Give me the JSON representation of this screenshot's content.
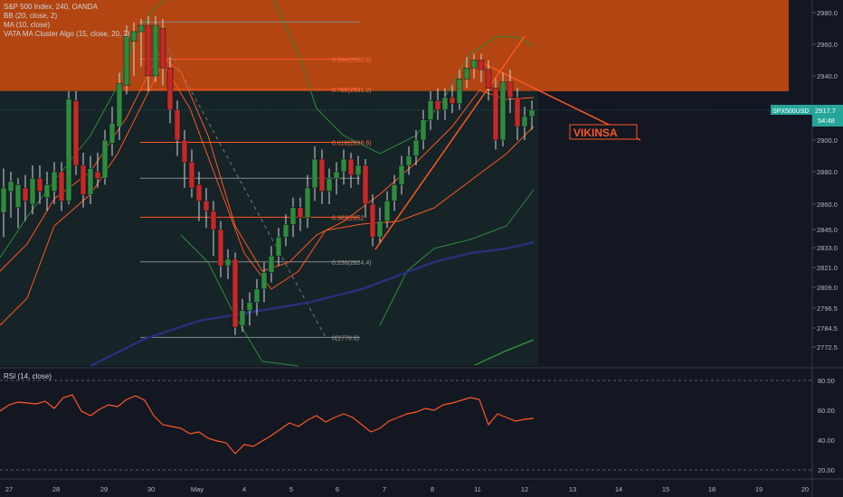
{
  "legend": {
    "title": "S&P 500 Index, 240, OANDA",
    "bb": "BB (20, close, 2)",
    "ma": "MA (10, close)",
    "vata": "VATA MA Cluster Algo (15, close, 20, 2)"
  },
  "rsi_label": "RSI (14, close)",
  "price_tag": {
    "symbol": "SPX500USD",
    "value": "2917.7",
    "countdown": "54:48",
    "color": "#26a69a"
  },
  "watermark": "VIKINSA",
  "colors": {
    "background": "#131722",
    "up": "#2e8b3e",
    "down": "#c62828",
    "zone": "#c44a10",
    "rsi": "#ff5722",
    "bb": "#2e8b3e",
    "ma": "#ff5722",
    "long_ma": "#2a2e7a"
  },
  "chart_data": {
    "type": "candlestick",
    "price_ticks": [
      2980.0,
      2960.0,
      2940.0,
      2917.7,
      2900.0,
      2880.0,
      2860.0,
      2845.0,
      2833.0,
      2821.0,
      2809.0,
      2796.5,
      2784.5,
      2772.5
    ],
    "price_tick_labels": [
      "2980.0",
      "2960.0",
      "2940.0",
      "2917.7",
      "2900.0",
      "2880.0",
      "2860.0",
      "2845.0",
      "2833.0",
      "2821.0",
      "2809.0",
      "2796.5",
      "2784.5",
      "2772.5"
    ],
    "x_ticks": [
      "27",
      "28",
      "29",
      "30",
      "May",
      "4",
      "5",
      "6",
      "7",
      "8",
      "11",
      "12",
      "13",
      "14",
      "15",
      "18",
      "19",
      "20"
    ],
    "fib_levels": [
      {
        "label": "",
        "value": 2974
      },
      {
        "label": "0.886(2950.6)",
        "value": 2950.6
      },
      {
        "label": "0.786(2931.2)",
        "value": 2931.2
      },
      {
        "label": "0.618(2898.6)",
        "value": 2898.6
      },
      {
        "label": "",
        "value": 2876
      },
      {
        "label": "0.382(2852",
        "value": 2852.3
      },
      {
        "label": "0.236(2824.4)",
        "value": 2824.4
      },
      {
        "label": "0(2778.6)",
        "value": 2778.6
      }
    ],
    "rsi_ticks": [
      80,
      60,
      40,
      20
    ],
    "rsi_tick_labels": [
      "80.00",
      "60.00",
      "40.00",
      "20.00"
    ]
  }
}
